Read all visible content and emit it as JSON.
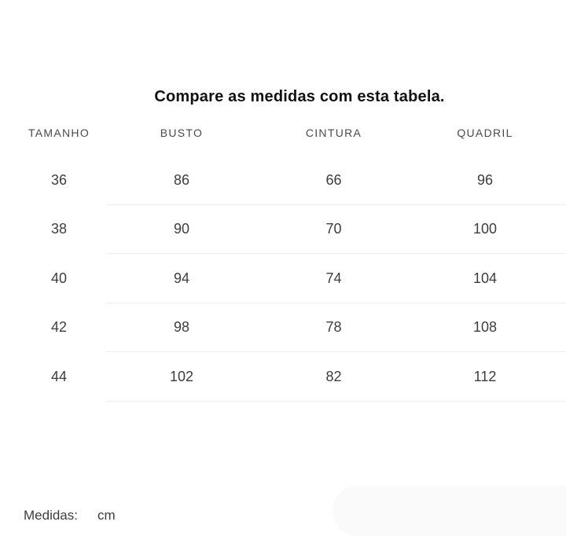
{
  "title": "Compare as medidas com esta tabela.",
  "table": {
    "headers": [
      "TAMANHO",
      "BUSTO",
      "CINTURA",
      "QUADRIL"
    ],
    "rows": [
      [
        "36",
        "86",
        "66",
        "96"
      ],
      [
        "38",
        "90",
        "70",
        "100"
      ],
      [
        "40",
        "94",
        "74",
        "104"
      ],
      [
        "42",
        "98",
        "78",
        "108"
      ],
      [
        "44",
        "102",
        "82",
        "112"
      ]
    ]
  },
  "footer": {
    "label": "Medidas:",
    "unit": "cm"
  },
  "colors": {
    "background": "#ffffff",
    "title_text": "#121212",
    "header_text": "#4a4a4a",
    "cell_text": "#3d3d3d",
    "divider": "#eeeeee",
    "pill_background": "#fafafa"
  }
}
